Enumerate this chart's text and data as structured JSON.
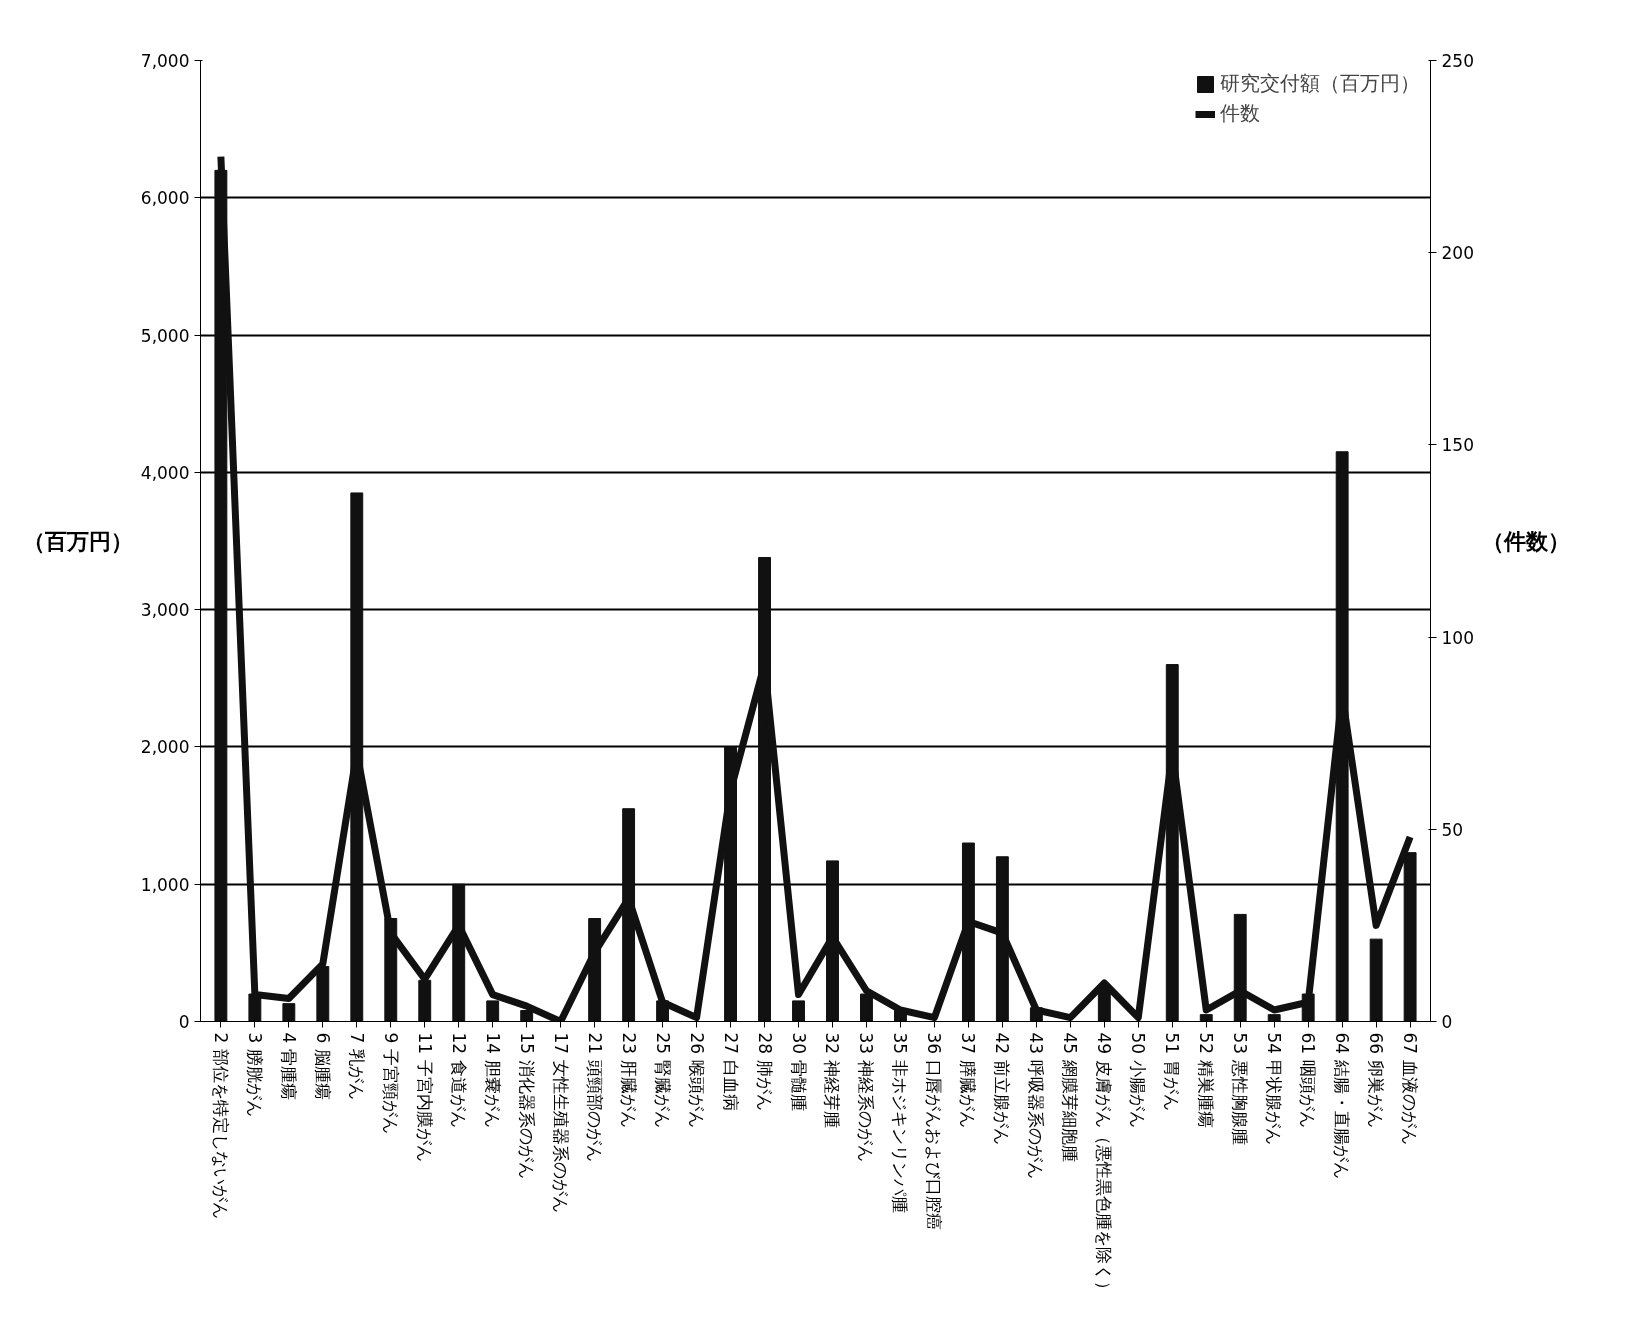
{
  "chart_data": {
    "type": "bar",
    "ylabel": "（百万円）",
    "y2label": "（件数）",
    "categories": [
      "2 部位を特定しないがん",
      "3 膀胱がん",
      "4 骨腫瘍",
      "6 脳腫瘍",
      "7 乳がん",
      "9 子宮頸がん",
      "11 子宮内膜がん",
      "12 食道がん",
      "14 胆嚢がん",
      "15 消化器系のがん",
      "17 女性生殖器系のがん",
      "21 頭頸部のがん",
      "23 肝臓がん",
      "25 腎臓がん",
      "26 喉頭がん",
      "27 白血病",
      "28 肺がん",
      "30 骨髄腫",
      "32 神経芽腫",
      "33 神経系のがん",
      "35 非ホジキンリンパ腫",
      "36 口唇がんおよび口腔癌",
      "37 膵臓がん",
      "42 前立腺がん",
      "43 呼吸器系のがん",
      "45 網膜芽細胞腫",
      "49 皮膚がん（悪性黒色腫を除く）",
      "50 小腸がん",
      "51 胃がん",
      "52 精巣腫瘍",
      "53 悪性胸腺腫",
      "54 甲状腺がん",
      "61 咽頭がん",
      "64 結腸・直腸がん",
      "66 卵巣がん",
      "67 血液のがん"
    ],
    "series": [
      {
        "name": "研究交付額（百万円）",
        "color": "#111111",
        "values": [
          6200,
          200,
          130,
          400,
          3850,
          750,
          300,
          1000,
          150,
          80,
          0,
          750,
          1550,
          150,
          0,
          2000,
          3380,
          150,
          1170,
          200,
          80,
          0,
          1300,
          1200,
          100,
          0,
          250,
          0,
          2600,
          50,
          780,
          50,
          200,
          4150,
          600,
          1230
        ]
      },
      {
        "name": "件数",
        "type": "line",
        "axis": "y2",
        "color": "#111111",
        "values": [
          225,
          7,
          6,
          15,
          70,
          23,
          11,
          25,
          7,
          4,
          0,
          18,
          32,
          5,
          1,
          60,
          93,
          7,
          22,
          8,
          3,
          1,
          26,
          23,
          3,
          1,
          10,
          1,
          70,
          3,
          8,
          3,
          5,
          85,
          25,
          48
        ]
      }
    ],
    "ylim": [
      0,
      7000
    ],
    "yticks": [
      0,
      {
        "value": 1000,
        "label": "1,000"
      },
      {
        "value": 2000,
        "label": "2,000"
      },
      {
        "value": 3000,
        "label": "3,000"
      },
      {
        "value": 4000,
        "label": "4,000"
      },
      {
        "value": 5000,
        "label": "5,000"
      },
      {
        "value": 6000,
        "label": "6,000"
      },
      {
        "value": 7000,
        "label": "7,000"
      }
    ],
    "y2lim": [
      0,
      250
    ],
    "y2ticks": [
      0,
      50,
      100,
      150,
      200,
      250
    ],
    "grid": "y",
    "legend": "top right"
  }
}
